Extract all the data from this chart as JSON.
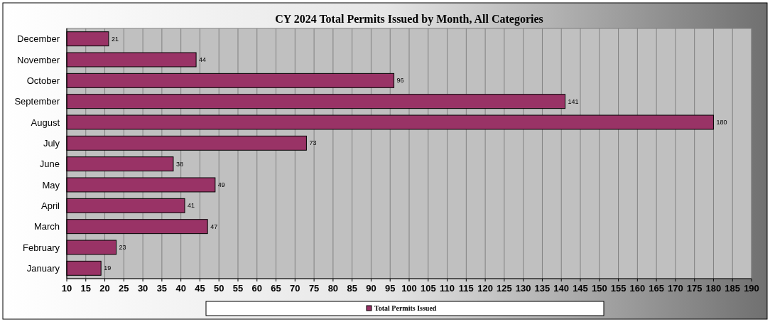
{
  "chart_data": {
    "type": "bar",
    "orientation": "horizontal",
    "title": "CY 2024 Total Permits Issued by Month, All Categories",
    "categories": [
      "December",
      "November",
      "October",
      "September",
      "August",
      "July",
      "June",
      "May",
      "April",
      "March",
      "February",
      "January"
    ],
    "series": [
      {
        "name": "Total Permits Issued",
        "color": "#993366",
        "values": [
          21,
          44,
          96,
          141,
          180,
          73,
          38,
          49,
          41,
          47,
          23,
          19
        ]
      }
    ],
    "xlim": [
      10,
      190
    ],
    "xticks": [
      10,
      15,
      20,
      25,
      30,
      35,
      40,
      45,
      50,
      55,
      60,
      65,
      70,
      75,
      80,
      85,
      90,
      95,
      100,
      105,
      110,
      115,
      120,
      125,
      130,
      135,
      140,
      145,
      150,
      155,
      160,
      165,
      170,
      175,
      180,
      185,
      190
    ],
    "grid": "x",
    "data_labels": true,
    "legend": "bottom"
  }
}
